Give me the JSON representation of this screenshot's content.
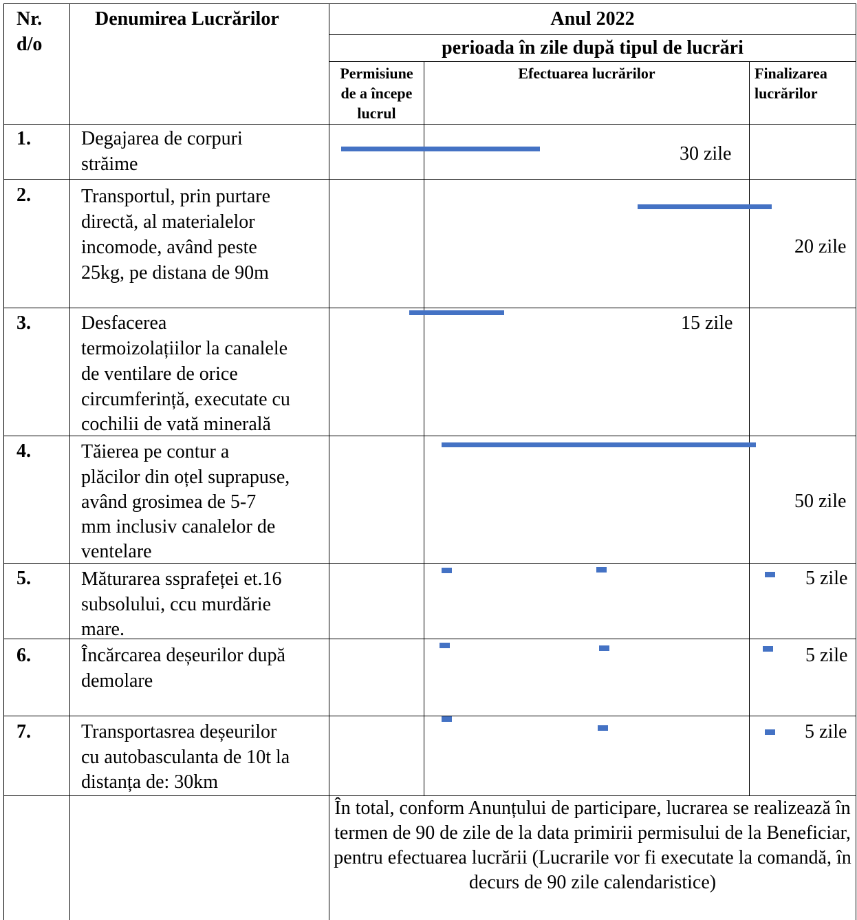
{
  "header": {
    "nr": "Nr.",
    "do": "d/o",
    "name": "Denumirea Lucrărilor",
    "year": "Anul 2022",
    "period": "perioada în zile după tipul de lucrări",
    "col_permit": [
      "Permisiune",
      "de a începe",
      "lucrul"
    ],
    "col_exec": "Efectuarea lucrărilor",
    "col_final": [
      "Finalizarea",
      "lucrărilor"
    ]
  },
  "rows": [
    {
      "nr": "1.",
      "lines": [
        "Degajarea de corpuri",
        "străime"
      ],
      "duration": "30 zile"
    },
    {
      "nr": "2.",
      "lines": [
        "Transportul, prin purtare",
        "directă, al materialelor",
        "incomode, având peste",
        "25kg, pe distana de 90m"
      ],
      "duration": "20 zile"
    },
    {
      "nr": "3.",
      "lines": [
        "Desfacerea",
        "termoizolațiilor la canalele",
        "de ventilare de orice",
        "circumferință, executate cu",
        "cochilii de vată minerală"
      ],
      "duration": "15 zile"
    },
    {
      "nr": "4.",
      "lines": [
        "Tăierea pe contur a",
        "plăcilor din oțel suprapuse,",
        "având grosimea de 5-7",
        "mm inclusiv canalelor de",
        "ventelare"
      ],
      "duration": "50 zile"
    },
    {
      "nr": "5.",
      "lines": [
        "Măturarea ssprafeței et.16",
        "subsolului, ccu murdărie",
        "mare."
      ],
      "duration": "5 zile"
    },
    {
      "nr": "6.",
      "lines": [
        "Încărcarea deșeurilor după",
        "demolare"
      ],
      "duration": "5 zile"
    },
    {
      "nr": "7.",
      "lines": [
        "Transportasrea deșeurilor",
        "cu autobasculanta de 10t la",
        "distanța de: 30km"
      ],
      "duration": "5 zile"
    }
  ],
  "total_note": "În total, conform Anunțului de participare, lucrarea se realizează în termen de 90 de zile de la data primirii permisului de la Beneficiar, pentru efectuarea lucrării (Lucrarile vor fi executate la comandă, în decurs de 90 zile calendaristice)",
  "colors": {
    "bar": "#4472C4",
    "line": "#000000"
  }
}
